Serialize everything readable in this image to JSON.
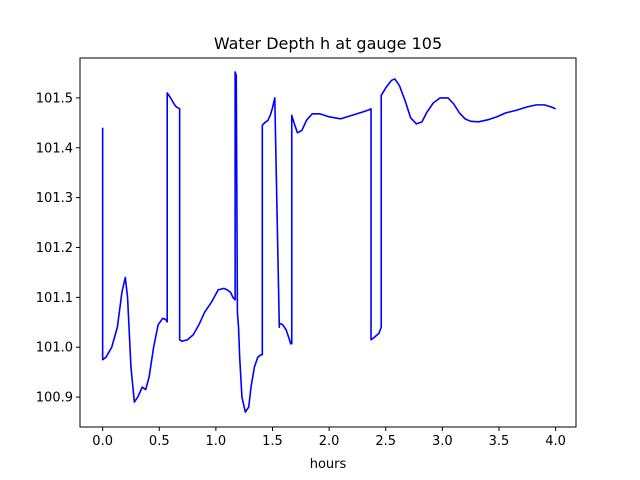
{
  "chart_data": {
    "type": "line",
    "title": "Water Depth h at gauge 105",
    "xlabel": "hours",
    "ylabel": "",
    "xlim": [
      -0.2,
      4.18
    ],
    "ylim": [
      100.84,
      101.58
    ],
    "xticks": [
      0.0,
      0.5,
      1.0,
      1.5,
      2.0,
      2.5,
      3.0,
      3.5,
      4.0
    ],
    "xtick_labels": [
      "0.0",
      "0.5",
      "1.0",
      "1.5",
      "2.0",
      "2.5",
      "3.0",
      "3.5",
      "4.0"
    ],
    "yticks": [
      100.9,
      101.0,
      101.1,
      101.2,
      101.3,
      101.4,
      101.5
    ],
    "ytick_labels": [
      "100.9",
      "101.0",
      "101.1",
      "101.2",
      "101.3",
      "101.4",
      "101.5"
    ],
    "grid": false,
    "series": [
      {
        "name": "",
        "color": "#0000ff",
        "x": [
          0.0,
          0.0,
          0.03,
          0.08,
          0.13,
          0.17,
          0.2,
          0.22,
          0.25,
          0.28,
          0.31,
          0.35,
          0.38,
          0.41,
          0.45,
          0.49,
          0.53,
          0.56,
          0.565,
          0.57,
          0.57,
          0.6,
          0.63,
          0.65,
          0.68,
          0.68,
          0.7,
          0.75,
          0.8,
          0.85,
          0.9,
          0.96,
          1.02,
          1.07,
          1.1,
          1.13,
          1.15,
          1.17,
          1.17,
          1.18,
          1.18,
          1.19,
          1.2,
          1.21,
          1.23,
          1.26,
          1.29,
          1.31,
          1.34,
          1.37,
          1.4,
          1.41,
          1.41,
          1.43,
          1.46,
          1.48,
          1.5,
          1.52,
          1.56,
          1.56,
          1.59,
          1.62,
          1.65,
          1.66,
          1.67,
          1.67,
          1.69,
          1.72,
          1.76,
          1.8,
          1.85,
          1.92,
          2.0,
          2.1,
          2.2,
          2.3,
          2.35,
          2.37,
          2.37,
          2.4,
          2.44,
          2.46,
          2.46,
          2.5,
          2.55,
          2.58,
          2.62,
          2.67,
          2.72,
          2.77,
          2.82,
          2.86,
          2.92,
          2.98,
          3.05,
          3.1,
          3.15,
          3.2,
          3.25,
          3.32,
          3.4,
          3.48,
          3.56,
          3.65,
          3.75,
          3.83,
          3.9,
          3.96,
          4.0
        ],
        "y": [
          101.44,
          100.975,
          100.98,
          101.0,
          101.04,
          101.11,
          101.14,
          101.1,
          100.96,
          100.89,
          100.9,
          100.92,
          100.915,
          100.94,
          101.0,
          101.045,
          101.058,
          101.055,
          101.052,
          101.051,
          101.51,
          101.5,
          101.488,
          101.482,
          101.478,
          101.015,
          101.012,
          101.015,
          101.025,
          101.045,
          101.07,
          101.09,
          101.115,
          101.118,
          101.115,
          101.11,
          101.1,
          101.095,
          101.552,
          101.545,
          101.535,
          101.07,
          101.04,
          100.98,
          100.9,
          100.87,
          100.88,
          100.92,
          100.96,
          100.98,
          100.985,
          100.985,
          101.445,
          101.45,
          101.455,
          101.465,
          101.48,
          101.5,
          101.04,
          101.048,
          101.045,
          101.035,
          101.015,
          101.007,
          101.007,
          101.465,
          101.45,
          101.43,
          101.435,
          101.455,
          101.468,
          101.468,
          101.462,
          101.458,
          101.465,
          101.472,
          101.476,
          101.478,
          101.015,
          101.02,
          101.028,
          101.04,
          101.505,
          101.52,
          101.535,
          101.538,
          101.525,
          101.495,
          101.46,
          101.448,
          101.452,
          101.47,
          101.49,
          101.5,
          101.5,
          101.488,
          101.47,
          101.458,
          101.453,
          101.452,
          101.456,
          101.462,
          101.47,
          101.475,
          101.482,
          101.486,
          101.486,
          101.482,
          101.478
        ]
      }
    ]
  }
}
